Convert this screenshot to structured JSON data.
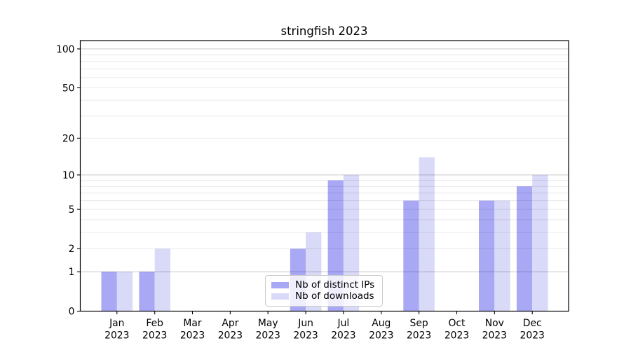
{
  "chart_data": {
    "type": "bar",
    "title": "stringfish 2023",
    "categories": [
      "Jan",
      "Feb",
      "Mar",
      "Apr",
      "May",
      "Jun",
      "Jul",
      "Aug",
      "Sep",
      "Oct",
      "Nov",
      "Dec"
    ],
    "year_label": "2023",
    "series": [
      {
        "name": "Nb of distinct IPs",
        "color": "#a8a8f5",
        "values": [
          1,
          1,
          0,
          0,
          0,
          2,
          9,
          0,
          6,
          0,
          6,
          8
        ]
      },
      {
        "name": "Nb of downloads",
        "color": "#d9d9f8",
        "values": [
          1,
          2,
          0,
          0,
          0,
          3,
          10,
          0,
          14,
          0,
          6,
          10
        ]
      }
    ],
    "y_axis": {
      "scale": "log1p",
      "tick_values": [
        100,
        50,
        20,
        10,
        5,
        2,
        1,
        0
      ],
      "tick_labels": [
        "100",
        "50",
        "20",
        "10",
        "5",
        "2",
        "1",
        "0"
      ],
      "decade_gridlines": [
        1,
        10,
        100
      ],
      "minor_gridlines": [
        2,
        3,
        4,
        5,
        6,
        7,
        8,
        9,
        20,
        30,
        40,
        50,
        60,
        70,
        80,
        90
      ],
      "ylim": [
        0,
        116
      ]
    },
    "xlabel": "",
    "ylabel": "",
    "grid": true,
    "legend_position": "lower-center",
    "colors": {
      "major_grid": "#c9c9c9",
      "minor_grid": "#e9e9e9",
      "spine": "#000000"
    }
  }
}
